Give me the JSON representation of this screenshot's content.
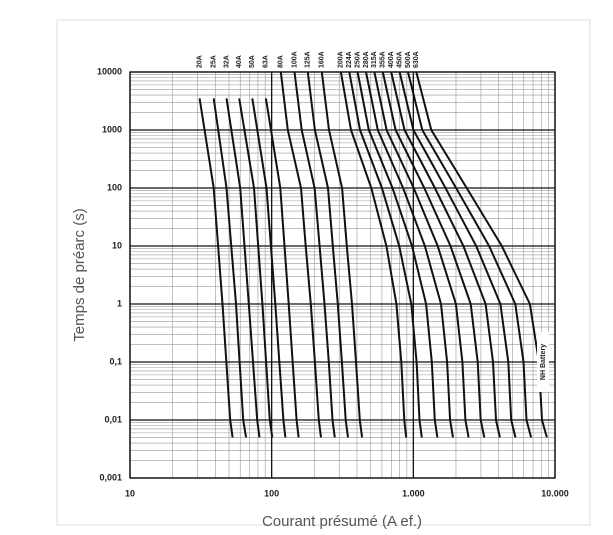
{
  "chart_data": {
    "type": "line",
    "log_x": true,
    "log_y": true,
    "grid": true,
    "color": "#111111",
    "x_label": "Courant présumé (A ef.)",
    "y_label": "Temps de préarc (s)",
    "annotation": "NH Battery",
    "xlim": [
      10,
      10000
    ],
    "ylim": [
      0.001,
      10000
    ],
    "xticks": [
      10,
      100,
      {
        "value": 1000,
        "label": "1.000"
      },
      {
        "value": 10000,
        "label": "10.000"
      }
    ],
    "yticks": [
      {
        "value": 0.001,
        "label": "0,001"
      },
      {
        "value": 0.01,
        "label": "0,01"
      },
      {
        "value": 0.1,
        "label": "0,1"
      },
      1,
      10,
      100,
      1000,
      10000
    ],
    "series": [
      {
        "name": "20A",
        "x": [
          31,
          39,
          45,
          51,
          53
        ],
        "values": [
          3500,
          100,
          1,
          0.01,
          0.005
        ]
      },
      {
        "name": "25A",
        "x": [
          39,
          48,
          56,
          63,
          66
        ],
        "values": [
          3500,
          100,
          1,
          0.01,
          0.005
        ]
      },
      {
        "name": "32A",
        "x": [
          48,
          60,
          69,
          79,
          82
        ],
        "values": [
          3500,
          100,
          1,
          0.01,
          0.005
        ]
      },
      {
        "name": "40A",
        "x": [
          59,
          75,
          86,
          97,
          101
        ],
        "values": [
          3500,
          100,
          1,
          0.01,
          0.005
        ]
      },
      {
        "name": "50A",
        "x": [
          73,
          92,
          106,
          121,
          125
        ],
        "values": [
          3500,
          100,
          1,
          0.01,
          0.005
        ]
      },
      {
        "name": "63A",
        "x": [
          91,
          115,
          132,
          150,
          155
        ],
        "values": [
          3500,
          100,
          1,
          0.01,
          0.005
        ]
      },
      {
        "name": "80A",
        "x": [
          116,
          130,
          161,
          174,
          189,
          202,
          215,
          223
        ],
        "values": [
          10000,
          1000,
          100,
          10,
          1,
          0.1,
          0.01,
          0.005
        ]
      },
      {
        "name": "100A",
        "x": [
          145,
          163,
          201,
          218,
          236,
          253,
          269,
          279
        ],
        "values": [
          10000,
          1000,
          100,
          10,
          1,
          0.1,
          0.01,
          0.005
        ]
      },
      {
        "name": "125A",
        "x": [
          180,
          202,
          250,
          270,
          293,
          313,
          333,
          346
        ],
        "values": [
          10000,
          1000,
          100,
          10,
          1,
          0.1,
          0.01,
          0.005
        ]
      },
      {
        "name": "160A",
        "x": [
          226,
          254,
          314,
          339,
          369,
          394,
          419,
          435
        ],
        "values": [
          10000,
          1000,
          100,
          10,
          1,
          0.1,
          0.01,
          0.005
        ]
      },
      {
        "name": "200A",
        "x": [
          308,
          363,
          505,
          645,
          760,
          822,
          863,
          890
        ],
        "values": [
          10000,
          1000,
          100,
          10,
          1,
          0.1,
          0.01,
          0.005
        ]
      },
      {
        "name": "224A",
        "x": [
          353,
          420,
          600,
          795,
          967,
          1054,
          1106,
          1147
        ],
        "values": [
          10000,
          1000,
          100,
          10,
          1,
          0.1,
          0.01,
          0.005
        ]
      },
      {
        "name": "250A",
        "x": [
          404,
          485,
          713,
          979,
          1231,
          1351,
          1418,
          1479
        ],
        "values": [
          10000,
          1000,
          100,
          10,
          1,
          0.1,
          0.01,
          0.005
        ]
      },
      {
        "name": "280A",
        "x": [
          463,
          561,
          847,
          1206,
          1568,
          1732,
          1818,
          1906
        ],
        "values": [
          10000,
          1000,
          100,
          10,
          1,
          0.1,
          0.01,
          0.005
        ]
      },
      {
        "name": "315A",
        "x": [
          531,
          648,
          1006,
          1486,
          1996,
          2220,
          2331,
          2457
        ],
        "values": [
          10000,
          1000,
          100,
          10,
          1,
          0.1,
          0.01,
          0.005
        ]
      },
      {
        "name": "355A",
        "x": [
          609,
          749,
          1195,
          1831,
          2541,
          2846,
          2988,
          3167
        ],
        "values": [
          10000,
          1000,
          100,
          10,
          1,
          0.1,
          0.01,
          0.005
        ]
      },
      {
        "name": "400A",
        "x": [
          698,
          866,
          1420,
          2256,
          3235,
          3649,
          3831,
          4083
        ],
        "values": [
          10000,
          1000,
          100,
          10,
          1,
          0.1,
          0.01,
          0.005
        ]
      },
      {
        "name": "450A",
        "x": [
          800,
          1001,
          1687,
          2779,
          4118,
          4678,
          4911,
          5263
        ],
        "values": [
          10000,
          1000,
          100,
          10,
          1,
          0.1,
          0.01,
          0.005
        ]
      },
      {
        "name": "500A",
        "x": [
          917,
          1157,
          2004,
          3424,
          5242,
          5997,
          6296,
          6784
        ],
        "values": [
          10000,
          1000,
          100,
          10,
          1,
          0.1,
          0.01,
          0.005
        ]
      },
      {
        "name": "630A",
        "x": [
          1050,
          1340,
          2380,
          4210,
          6650,
          7700,
          8090,
          8770
        ],
        "values": [
          10000,
          1000,
          100,
          10,
          1,
          0.1,
          0.01,
          0.005
        ]
      }
    ]
  }
}
